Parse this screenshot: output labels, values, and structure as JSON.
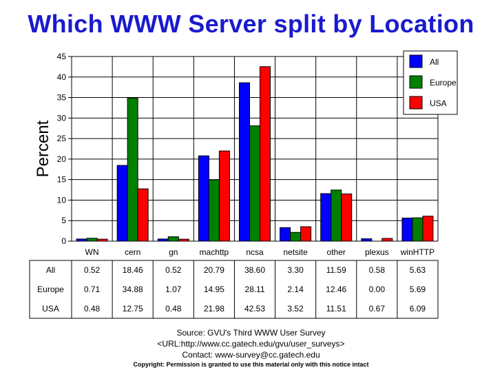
{
  "title": "Which WWW Server split by Location",
  "chart_data": {
    "type": "bar",
    "title": "Which WWW Server split by Location",
    "ylabel": "Percent",
    "xlabel": "",
    "ylim": [
      0,
      45
    ],
    "yticks": [
      0,
      5,
      10,
      15,
      20,
      25,
      30,
      35,
      40,
      45
    ],
    "grid": true,
    "legend_position": "top-right",
    "categories": [
      "WN",
      "cern",
      "gn",
      "machttp",
      "ncsa",
      "netsite",
      "other",
      "plexus",
      "winHTTP"
    ],
    "series": [
      {
        "name": "All",
        "color": "#0000ff",
        "values": [
          0.52,
          18.46,
          0.52,
          20.79,
          38.6,
          3.3,
          11.59,
          0.58,
          5.63
        ],
        "labels": [
          "0.52",
          "18.46",
          "0.52",
          "20.79",
          "38.60",
          "3.30",
          "11.59",
          "0.58",
          "5.63"
        ]
      },
      {
        "name": "Europe",
        "color": "#008000",
        "values": [
          0.71,
          34.88,
          1.07,
          14.95,
          28.11,
          2.14,
          12.46,
          0.0,
          5.69
        ],
        "labels": [
          "0.71",
          "34.88",
          "1.07",
          "14.95",
          "28.11",
          "2.14",
          "12.46",
          "0.00",
          "5.69"
        ]
      },
      {
        "name": "USA",
        "color": "#ff0000",
        "values": [
          0.48,
          12.75,
          0.48,
          21.98,
          42.53,
          3.52,
          11.51,
          0.67,
          6.09
        ],
        "labels": [
          "0.48",
          "12.75",
          "0.48",
          "21.98",
          "42.53",
          "3.52",
          "11.51",
          "0.67",
          "6.09"
        ]
      }
    ]
  },
  "footer": {
    "source": "Source: GVU's Third WWW User Survey",
    "url": "<URL:http://www.cc.gatech.edu/gvu/user_surveys>",
    "contact": "Contact: www-survey@cc.gatech.edu",
    "copyright": "Copyright: Permission is granted to use this material only with this notice intact"
  }
}
